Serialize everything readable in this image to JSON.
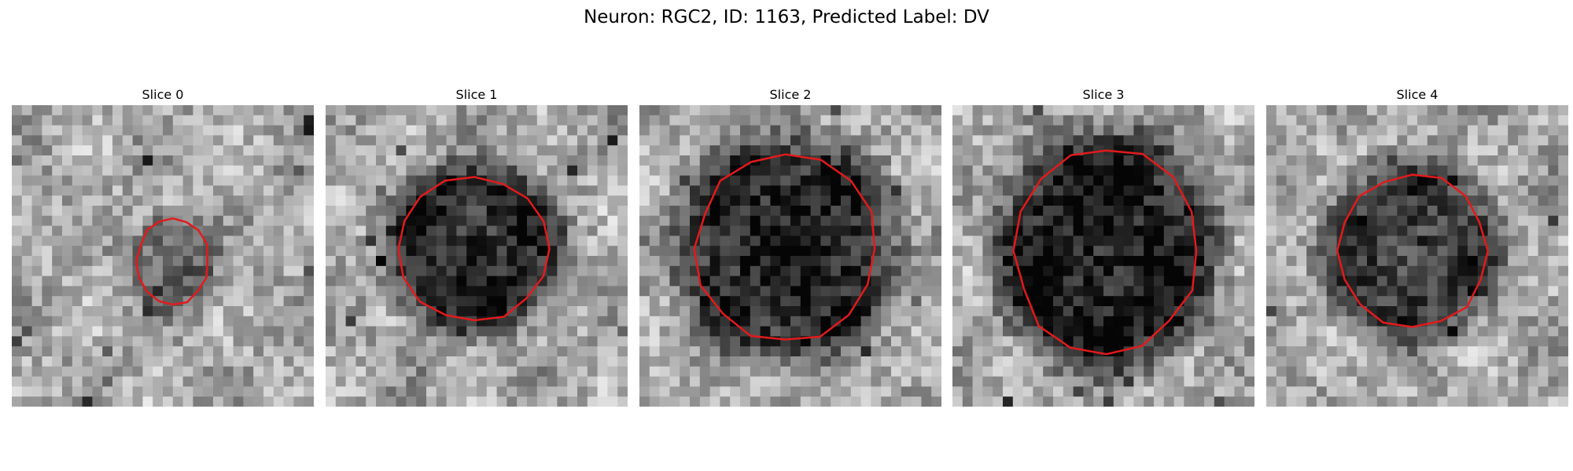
{
  "figure": {
    "title": "Neuron: RGC2, ID: 1163, Predicted Label: DV",
    "contour_color": "#e31a1c",
    "colormap": "gray",
    "grid_size": 30,
    "panels": [
      {
        "title": "Slice 0",
        "center": [
          16.0,
          15.5
        ],
        "radii": [
          3.5,
          4.2
        ],
        "darkness": 0.28,
        "seed": 11
      },
      {
        "title": "Slice 1",
        "center": [
          14.8,
          14.3
        ],
        "radii": [
          7.3,
          7.0
        ],
        "darkness": 0.5,
        "seed": 23
      },
      {
        "title": "Slice 2",
        "center": [
          14.5,
          14.3
        ],
        "radii": [
          8.8,
          9.2
        ],
        "darkness": 0.52,
        "seed": 37
      },
      {
        "title": "Slice 3",
        "center": [
          15.3,
          14.5
        ],
        "radii": [
          9.0,
          10.0
        ],
        "darkness": 0.55,
        "seed": 41
      },
      {
        "title": "Slice 4",
        "center": [
          14.5,
          14.5
        ],
        "radii": [
          7.3,
          7.5
        ],
        "darkness": 0.42,
        "seed": 53
      }
    ]
  }
}
